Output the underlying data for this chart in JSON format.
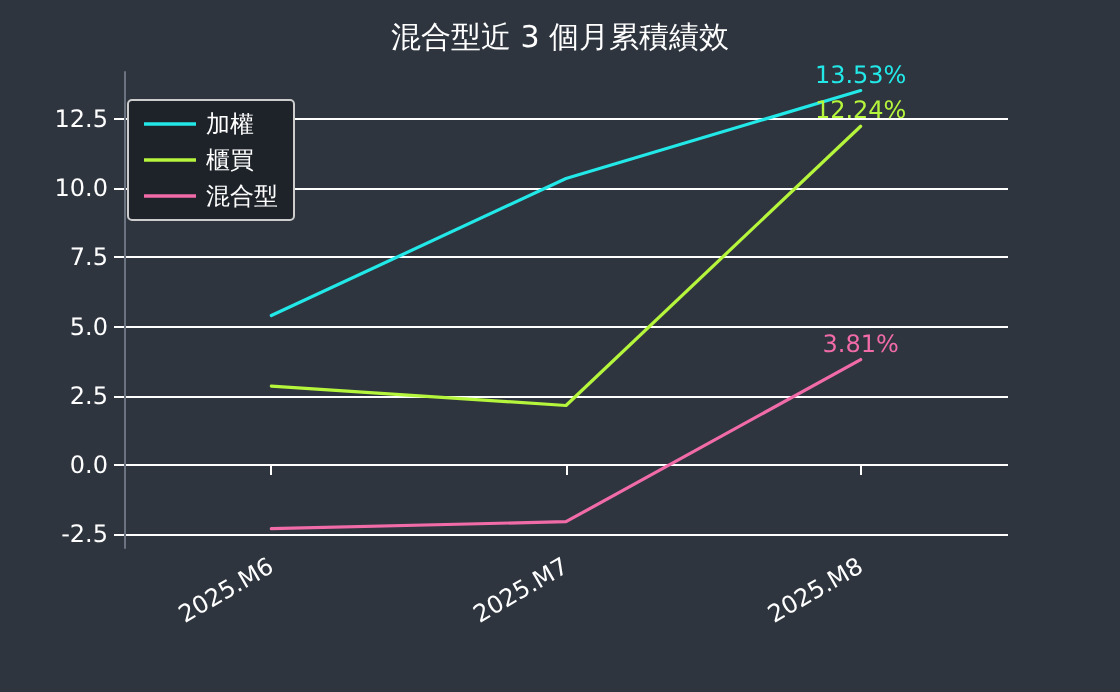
{
  "chart_data": {
    "type": "line",
    "title": "混合型近 3 個月累積績效",
    "categories": [
      "2025.M6",
      "2025.M7",
      "2025.M8"
    ],
    "series": [
      {
        "name": "加權",
        "color": "#22e8e8",
        "values": [
          5.4,
          10.35,
          13.53
        ],
        "value_labels": [
          null,
          null,
          "13.53%"
        ]
      },
      {
        "name": "櫃買",
        "color": "#b5f53c",
        "values": [
          2.85,
          2.15,
          12.24
        ],
        "value_labels": [
          null,
          null,
          "12.24%"
        ]
      },
      {
        "name": "混合型",
        "color": "#f06ba8",
        "values": [
          -2.3,
          -2.05,
          3.81
        ],
        "value_labels": [
          null,
          null,
          "3.81%"
        ]
      }
    ],
    "ylim": [
      -3,
      14.2
    ],
    "yticks": [
      -2.5,
      {
        "value": 0,
        "label": "0.0"
      },
      2.5,
      {
        "value": 5,
        "label": "5.0"
      },
      7.5,
      {
        "value": 10,
        "label": "10.0"
      },
      12.5
    ],
    "grid": "y",
    "legend": "top left",
    "marker": "none",
    "line_style": "solid"
  }
}
